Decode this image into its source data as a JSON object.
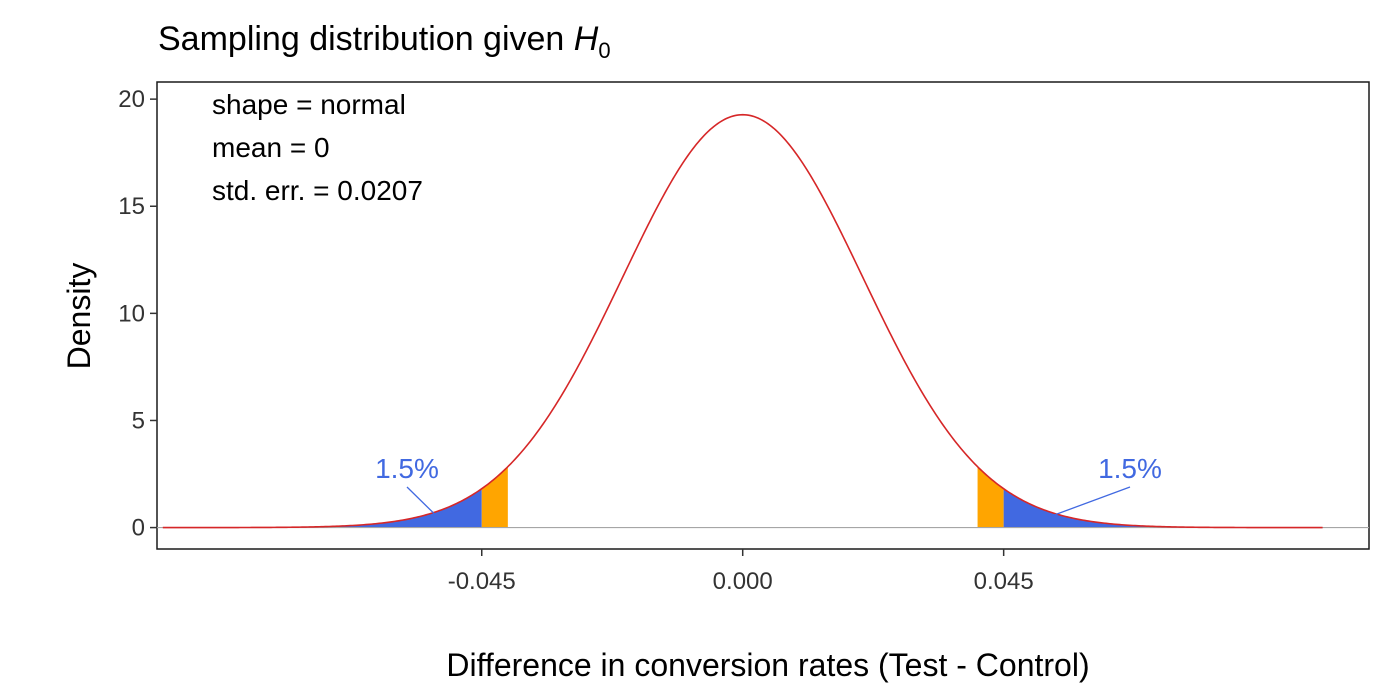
{
  "chart_data": {
    "type": "area",
    "title": {
      "main": "Sampling distribution given ",
      "symbol": "H",
      "subscript": "0"
    },
    "xlabel": "Difference in conversion rates (Test - Control)",
    "ylabel": "Density",
    "xlim": [
      -0.101,
      0.108
    ],
    "ylim": [
      -1,
      20.8
    ],
    "x_ticks": [
      {
        "value": -0.045,
        "label": "-0.045"
      },
      {
        "value": 0.0,
        "label": "0.000"
      },
      {
        "value": 0.045,
        "label": "0.045"
      }
    ],
    "y_ticks": [
      {
        "value": 0,
        "label": "0"
      },
      {
        "value": 5,
        "label": "5"
      },
      {
        "value": 10,
        "label": "10"
      },
      {
        "value": 15,
        "label": "15"
      },
      {
        "value": 20,
        "label": "20"
      }
    ],
    "distribution": {
      "shape": "normal",
      "mean": 0,
      "std_err": 0.0207,
      "x_range": [
        -0.1,
        0.1
      ]
    },
    "annotations": [
      "shape = normal",
      "mean = 0",
      "std. err. = 0.0207"
    ],
    "shaded_regions": [
      {
        "name": "left-tail",
        "from": -0.1,
        "to": -0.045,
        "color": "#4169E1"
      },
      {
        "name": "left-band",
        "from": -0.045,
        "to": -0.0405,
        "color": "#FFA500"
      },
      {
        "name": "right-band",
        "from": 0.0405,
        "to": 0.045,
        "color": "#FFA500"
      },
      {
        "name": "right-tail",
        "from": 0.045,
        "to": 0.1,
        "color": "#4169E1"
      }
    ],
    "tail_labels": [
      {
        "text": "1.5%",
        "side": "left"
      },
      {
        "text": "1.5%",
        "side": "right"
      }
    ],
    "colors": {
      "curve": "#D62728",
      "tail": "#4169E1",
      "band": "#FFA500",
      "baseline": "#A6A6A6",
      "label": "#4169E1"
    },
    "grid": false
  }
}
